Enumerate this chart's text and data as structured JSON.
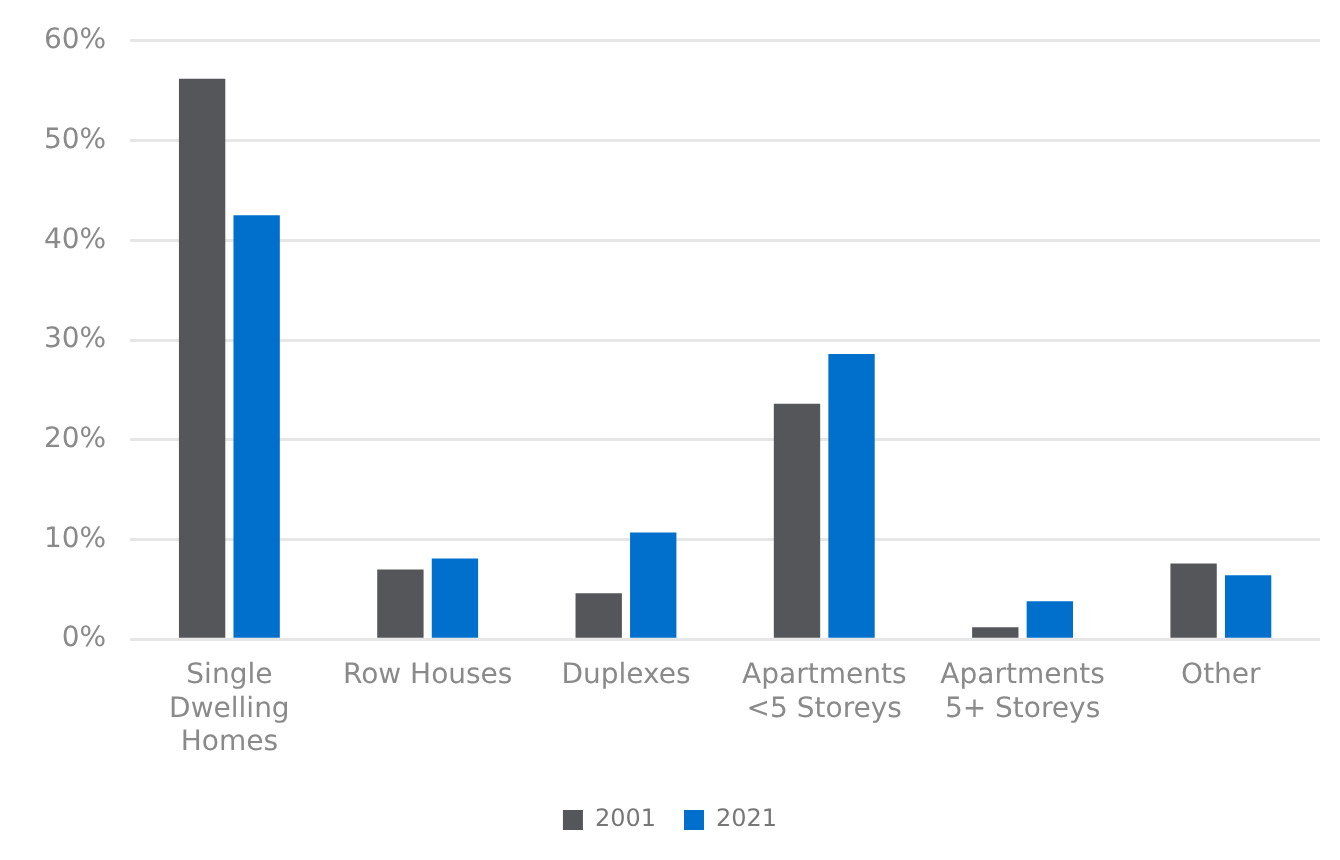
{
  "chart_data": {
    "type": "bar",
    "categories": [
      "Single Dwelling Homes",
      "Row Houses",
      "Duplexes",
      "Apartments <5 Storeys",
      "Apartments 5+ Storeys",
      "Other"
    ],
    "series": [
      {
        "name": "2001",
        "color": "#55565a",
        "values": [
          56.2,
          7.0,
          4.6,
          23.6,
          1.2,
          7.6
        ]
      },
      {
        "name": "2021",
        "color": "#0070cc",
        "values": [
          42.5,
          8.1,
          10.7,
          28.6,
          3.8,
          6.4
        ]
      }
    ],
    "ylim": [
      0,
      60
    ],
    "yticks": [
      {
        "value": 0,
        "label": "0%"
      },
      {
        "value": 10,
        "label": "10%"
      },
      {
        "value": 20,
        "label": "20%"
      },
      {
        "value": 30,
        "label": "30%"
      },
      {
        "value": 40,
        "label": "40%"
      },
      {
        "value": 50,
        "label": "50%"
      },
      {
        "value": 60,
        "label": "60%"
      }
    ],
    "grid": "y",
    "legend": "bottom"
  }
}
